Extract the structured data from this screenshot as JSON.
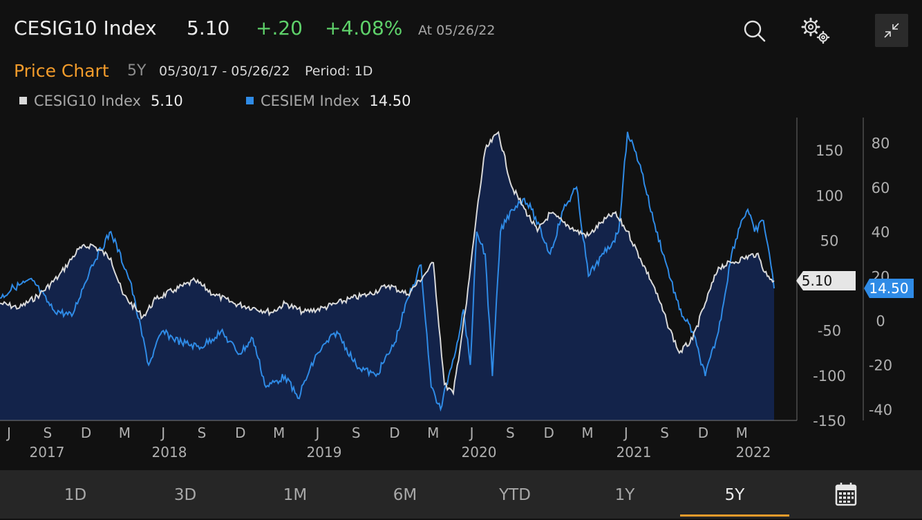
{
  "header": {
    "title": "CESIG10 Index",
    "price": "5.10",
    "change": "+.20",
    "change_pct": "+4.08%",
    "as_of": "At 05/26/22",
    "up_color": "#5ed16a",
    "icons": [
      "search-icon",
      "gear-icon",
      "collapse-icon"
    ]
  },
  "subheader": {
    "chart_label": "Price Chart",
    "range": "5Y",
    "date_range": "05/30/17 - 05/26/22",
    "period": "Period: 1D",
    "accent_color": "#f39c2b"
  },
  "legend": [
    {
      "name": "CESIG10 Index",
      "value": "5.10",
      "color": "#d9d9d9"
    },
    {
      "name": "CESIEM Index",
      "value": "14.50",
      "color": "#2f8be6"
    }
  ],
  "tabs": [
    {
      "label": "1D",
      "active": false
    },
    {
      "label": "3D",
      "active": false
    },
    {
      "label": "1M",
      "active": false
    },
    {
      "label": "6M",
      "active": false
    },
    {
      "label": "YTD",
      "active": false
    },
    {
      "label": "1Y",
      "active": false
    },
    {
      "label": "5Y",
      "active": true
    }
  ],
  "calendar_icon": "calendar-icon",
  "chart_data": {
    "type": "line",
    "x_month_labels": [
      "J",
      "S",
      "D",
      "M",
      "J",
      "S",
      "D",
      "M",
      "J",
      "S",
      "D",
      "M",
      "J",
      "S",
      "D",
      "M",
      "J",
      "S",
      "D",
      "M"
    ],
    "x_year_labels": [
      "2017",
      "2018",
      "2019",
      "2020",
      "2021",
      "2022"
    ],
    "left_axis": {
      "series": "CESIG10 Index",
      "ticks": [
        "150",
        "100",
        "50",
        "-50",
        "-100",
        "-150"
      ],
      "ylim": [
        -150,
        190
      ]
    },
    "right_axis": {
      "series": "CESIEM Index",
      "ticks": [
        "80",
        "60",
        "40",
        "20",
        "0",
        "-20",
        "-40"
      ],
      "ylim": [
        -45,
        93
      ]
    },
    "last_value_tags": [
      {
        "series": "CESIG10 Index",
        "label": "5.10"
      },
      {
        "series": "CESIEM Index",
        "label": "14.50"
      }
    ],
    "series": [
      {
        "name": "CESIG10 Index",
        "axis": "left",
        "color": "#d9d9d9",
        "fill": "#13234a",
        "x": [
          "2017-05-30",
          "2017-07-15",
          "2017-09-01",
          "2017-10-15",
          "2017-12-01",
          "2018-01-01",
          "2018-02-15",
          "2018-03-15",
          "2018-05-01",
          "2018-06-01",
          "2018-07-15",
          "2018-09-01",
          "2018-10-15",
          "2018-12-01",
          "2019-01-15",
          "2019-03-01",
          "2019-04-01",
          "2019-05-15",
          "2019-07-01",
          "2019-08-01",
          "2019-09-01",
          "2019-10-15",
          "2019-12-01",
          "2020-01-15",
          "2020-02-20",
          "2020-03-15",
          "2020-04-10",
          "2020-05-01",
          "2020-06-01",
          "2020-06-25",
          "2020-07-15",
          "2020-08-15",
          "2020-09-15",
          "2020-10-15",
          "2020-11-15",
          "2020-12-15",
          "2021-01-15",
          "2021-02-15",
          "2021-03-15",
          "2021-04-15",
          "2021-05-15",
          "2021-06-15",
          "2021-07-15",
          "2021-08-15",
          "2021-09-15",
          "2021-10-15",
          "2021-11-15",
          "2021-12-15",
          "2022-01-15",
          "2022-02-15",
          "2022-03-15",
          "2022-04-15",
          "2022-05-10",
          "2022-05-26"
        ],
        "values": [
          -20,
          -25,
          -10,
          10,
          40,
          45,
          30,
          -10,
          -35,
          -15,
          -5,
          5,
          -10,
          -20,
          -25,
          -30,
          -20,
          -30,
          -25,
          -20,
          -15,
          -10,
          0,
          -10,
          10,
          25,
          -110,
          -120,
          -20,
          80,
          150,
          170,
          110,
          85,
          60,
          80,
          70,
          60,
          55,
          70,
          80,
          60,
          30,
          0,
          -40,
          -75,
          -60,
          -20,
          20,
          25,
          30,
          35,
          10,
          5
        ]
      },
      {
        "name": "CESIEM Index",
        "axis": "right",
        "color": "#2f8be6",
        "x": [
          "2017-05-30",
          "2017-07-01",
          "2017-08-15",
          "2017-10-01",
          "2017-11-15",
          "2018-01-01",
          "2018-02-15",
          "2018-04-01",
          "2018-05-15",
          "2018-06-15",
          "2018-08-01",
          "2018-09-15",
          "2018-11-01",
          "2018-12-15",
          "2019-01-15",
          "2019-02-15",
          "2019-04-01",
          "2019-05-01",
          "2019-06-15",
          "2019-08-01",
          "2019-09-15",
          "2019-11-01",
          "2019-12-15",
          "2020-01-15",
          "2020-02-15",
          "2020-03-10",
          "2020-04-01",
          "2020-04-20",
          "2020-05-10",
          "2020-05-25",
          "2020-06-10",
          "2020-06-25",
          "2020-07-15",
          "2020-08-01",
          "2020-08-20",
          "2020-09-15",
          "2020-10-15",
          "2020-11-01",
          "2020-12-15",
          "2021-01-15",
          "2021-02-15",
          "2021-03-15",
          "2021-04-01",
          "2021-04-20",
          "2021-05-10",
          "2021-05-25",
          "2021-06-15",
          "2021-07-15",
          "2021-08-15",
          "2021-09-15",
          "2021-10-15",
          "2021-11-15",
          "2021-12-15",
          "2022-01-15",
          "2022-02-15",
          "2022-03-10",
          "2022-03-25",
          "2022-04-10",
          "2022-05-01",
          "2022-05-15",
          "2022-05-26"
        ],
        "values": [
          10,
          15,
          18,
          5,
          2,
          25,
          40,
          18,
          -20,
          -5,
          -10,
          -12,
          -5,
          -15,
          -8,
          -30,
          -25,
          -35,
          -15,
          -5,
          -20,
          -25,
          -10,
          10,
          25,
          -30,
          -40,
          -25,
          -10,
          5,
          -20,
          40,
          30,
          -25,
          40,
          50,
          55,
          50,
          30,
          50,
          60,
          20,
          25,
          30,
          35,
          40,
          85,
          70,
          45,
          25,
          5,
          -5,
          -25,
          -5,
          30,
          45,
          50,
          40,
          45,
          30,
          14.5
        ]
      }
    ]
  }
}
